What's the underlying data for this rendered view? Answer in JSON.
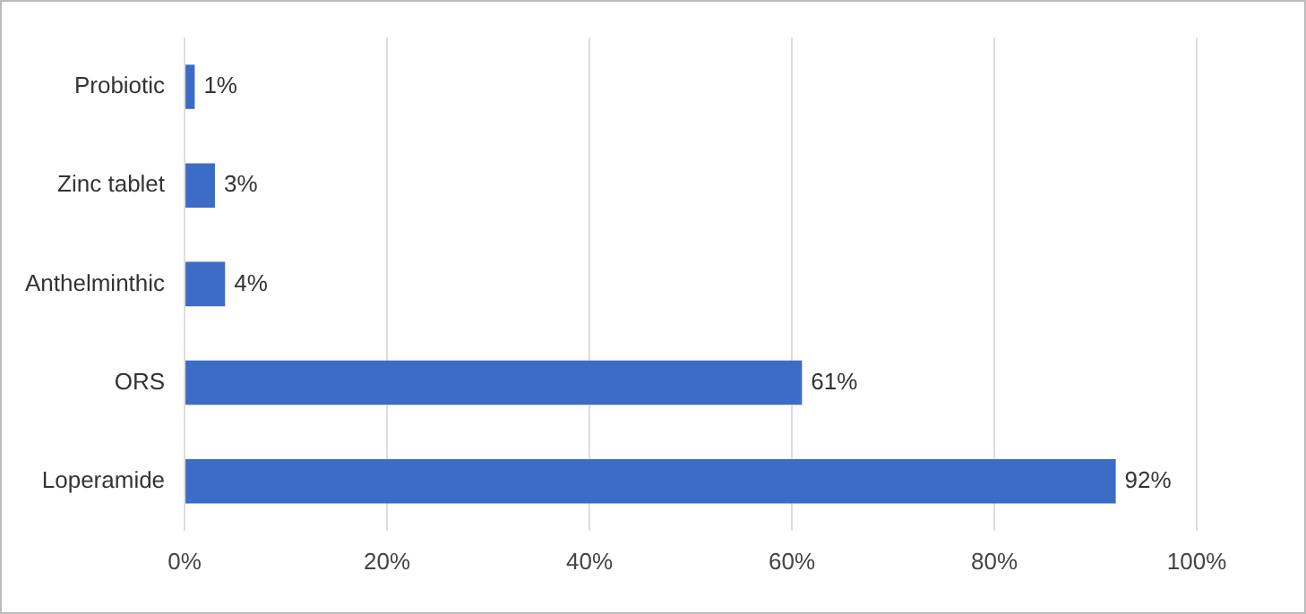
{
  "chart_data": {
    "type": "bar",
    "orientation": "horizontal",
    "categories": [
      "Probiotic",
      "Zinc tablet",
      "Anthelminthic",
      "ORS",
      "Loperamide"
    ],
    "values": [
      1,
      3,
      4,
      61,
      92
    ],
    "value_labels": [
      "1%",
      "3%",
      "4%",
      "61%",
      "92%"
    ],
    "color": "#3d6cc6",
    "xlim": [
      0,
      100
    ],
    "xticks": [
      {
        "value": 0,
        "label": "0%"
      },
      {
        "value": 20,
        "label": "20%"
      },
      {
        "value": 40,
        "label": "40%"
      },
      {
        "value": 60,
        "label": "60%"
      },
      {
        "value": 80,
        "label": "80%"
      },
      {
        "value": 100,
        "label": "100%"
      }
    ],
    "grid": "x"
  }
}
